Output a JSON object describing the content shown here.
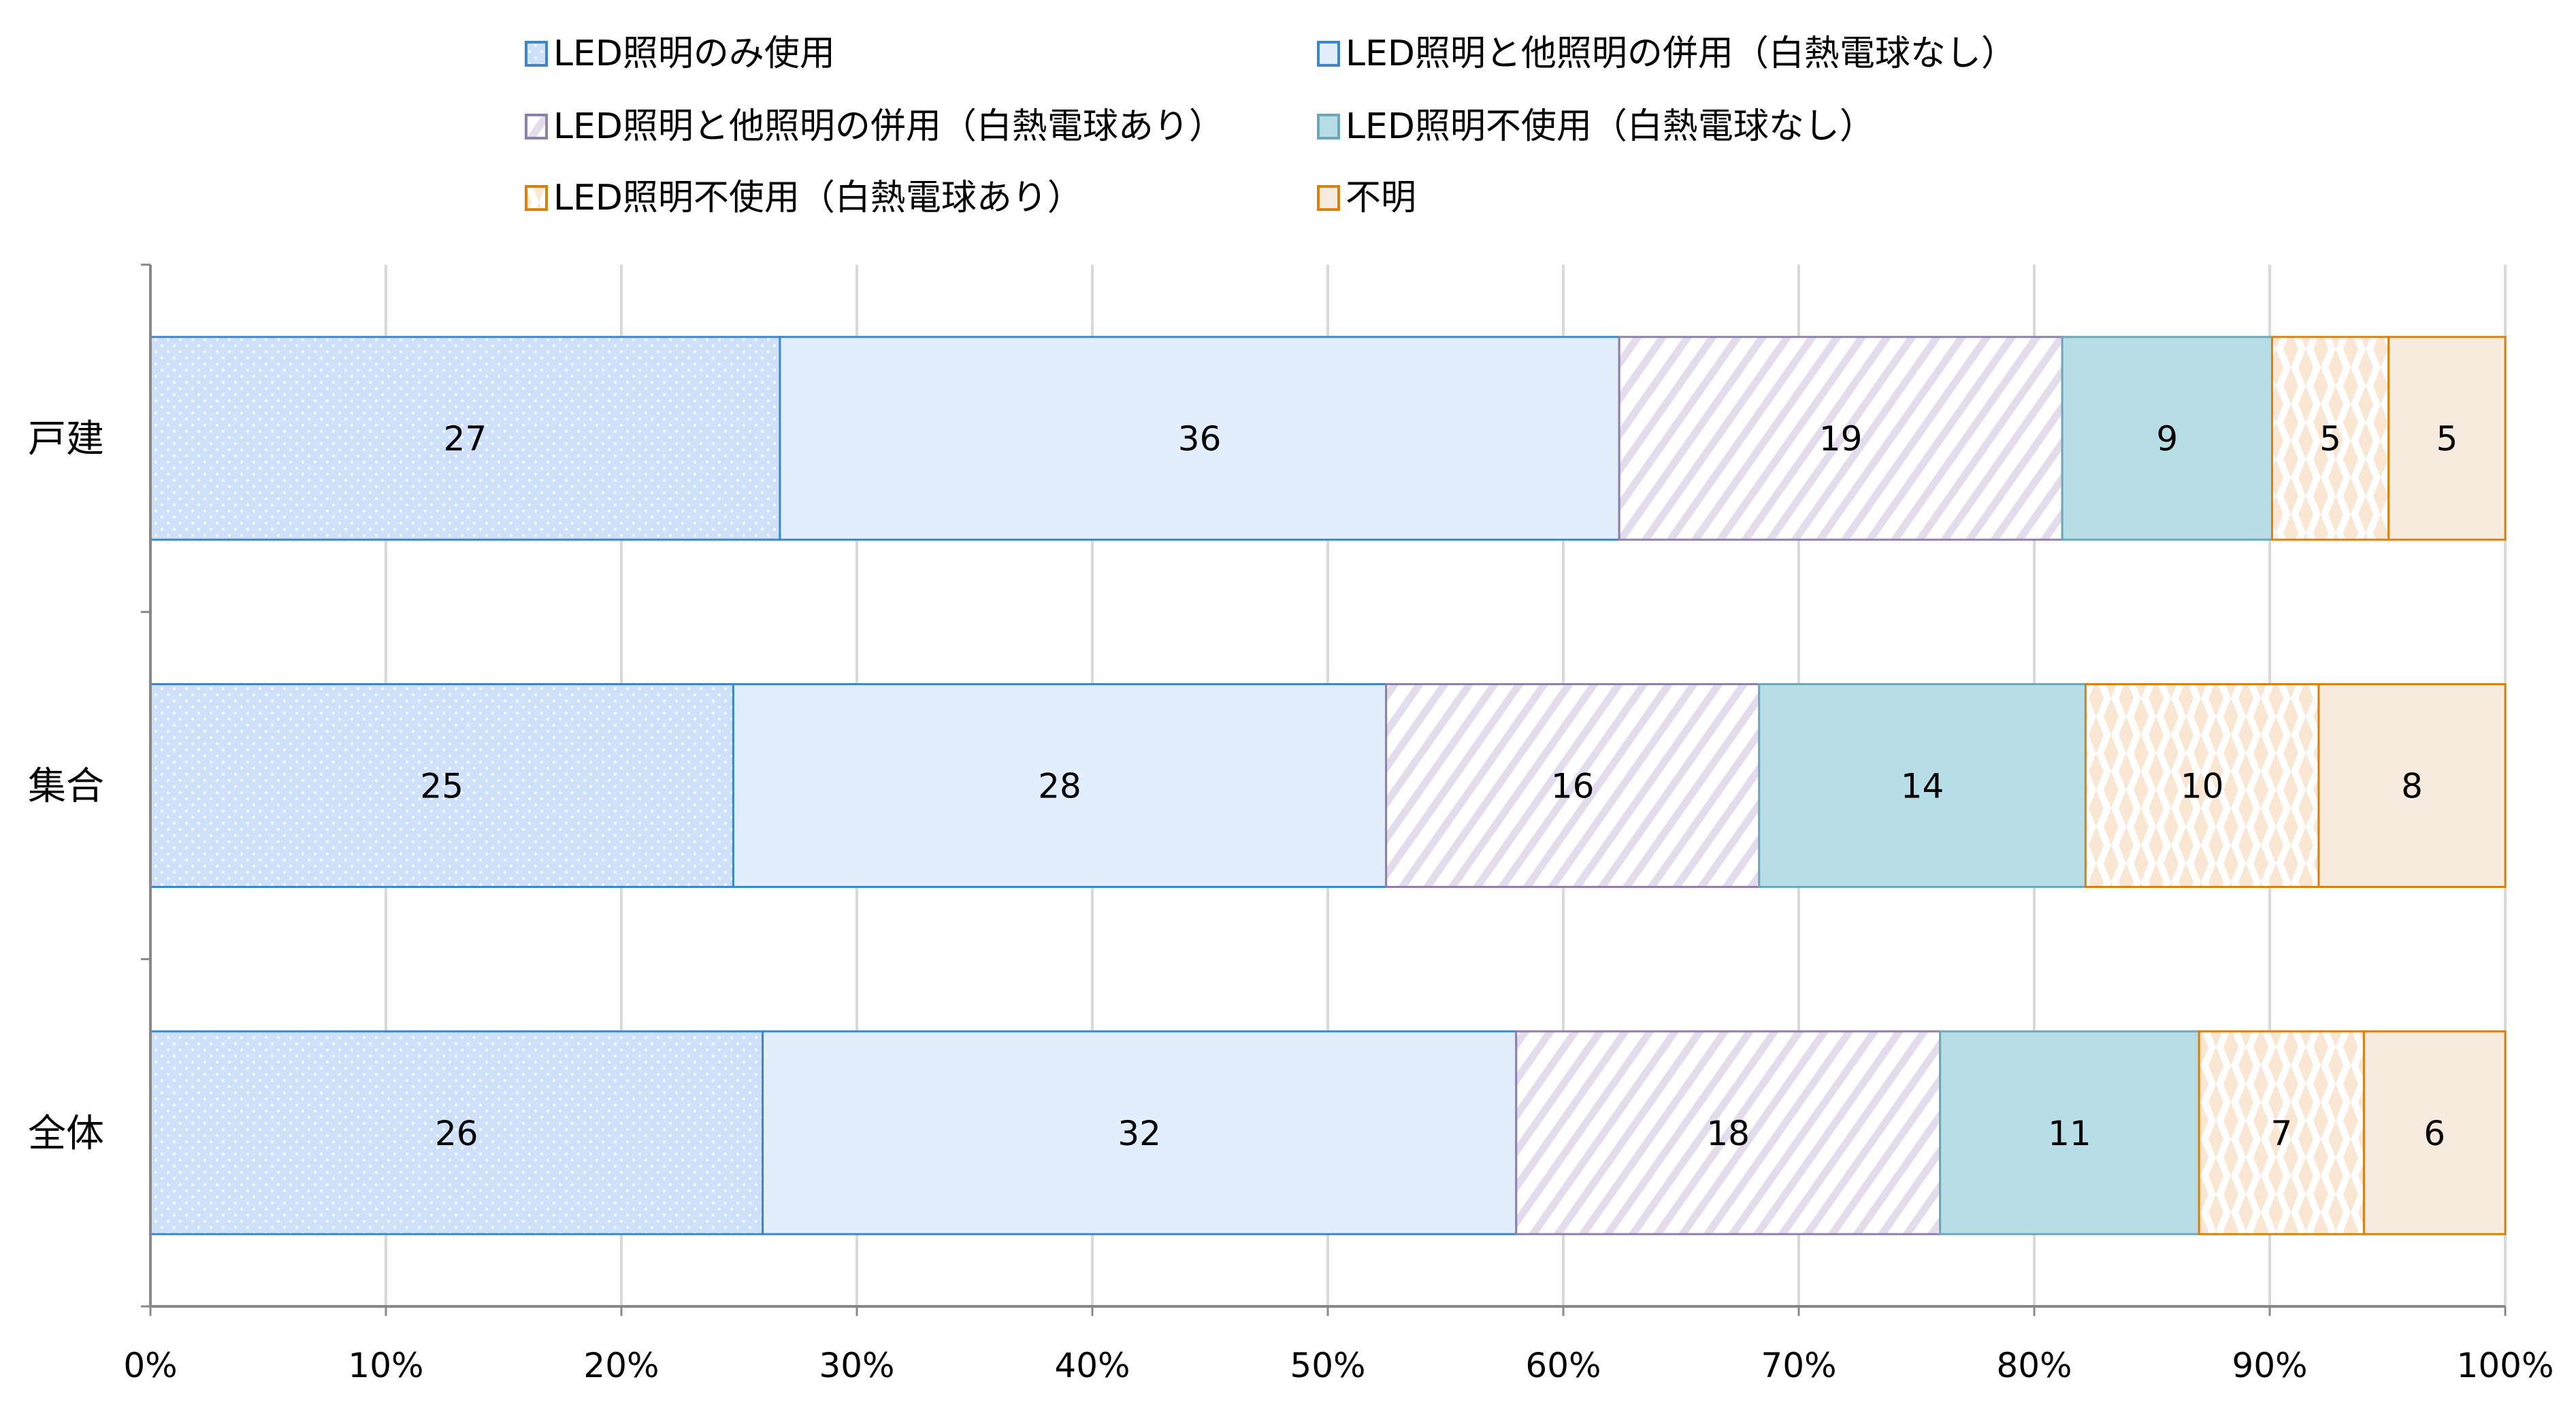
{
  "chart_data": {
    "type": "bar",
    "orientation": "horizontal",
    "stacked": "percent",
    "categories": [
      "戸建",
      "集合",
      "全体"
    ],
    "series": [
      {
        "name": "LED照明のみ使用",
        "values": [
          27,
          25,
          26
        ],
        "fill": "#cfe0fb",
        "stroke": "#3b87cf",
        "pattern": "dots"
      },
      {
        "name": "LED照明と他照明の併用（白熱電球なし）",
        "values": [
          36,
          28,
          32
        ],
        "fill": "#e3eefd",
        "stroke": "#3b87cf",
        "pattern": "solid"
      },
      {
        "name": "LED照明と他照明の併用（白熱電球あり）",
        "values": [
          19,
          16,
          18
        ],
        "fill": "#e4dcec",
        "stroke": "#8e7fab",
        "pattern": "stripes"
      },
      {
        "name": "LED照明不使用（白熱電球なし）",
        "values": [
          9,
          14,
          11
        ],
        "fill": "#b7dde7",
        "stroke": "#6ea7b7",
        "pattern": "solid"
      },
      {
        "name": "LED照明不使用（白熱電球あり）",
        "values": [
          5,
          10,
          7
        ],
        "fill": "#f9e6d3",
        "stroke": "#d9800f",
        "pattern": "diamonds"
      },
      {
        "name": "不明",
        "values": [
          5,
          8,
          6
        ],
        "fill": "#f7ebdf",
        "stroke": "#d9800f",
        "pattern": "solid"
      }
    ],
    "x_ticks": [
      "0%",
      "10%",
      "20%",
      "30%",
      "40%",
      "50%",
      "60%",
      "70%",
      "80%",
      "90%",
      "100%"
    ],
    "xlim": [
      0,
      100
    ],
    "grid": true,
    "legend_position": "top",
    "title": "",
    "xlabel": "",
    "ylabel": ""
  }
}
